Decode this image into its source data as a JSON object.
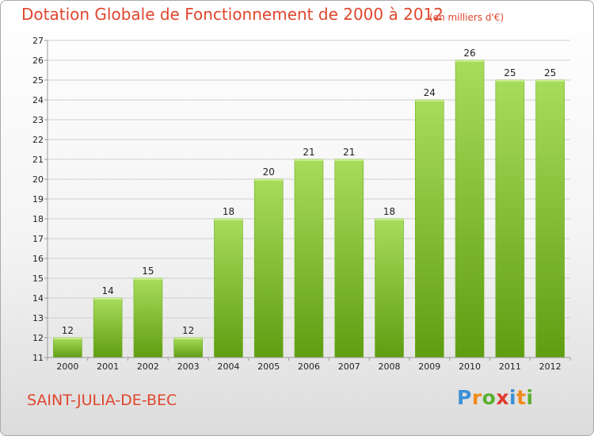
{
  "header": {
    "title": "Dotation Globale de Fonctionnement de 2000 à 2012",
    "unit": "(en milliers d'€)"
  },
  "footer": {
    "commune": "SAINT-JULIA-DE-BEC",
    "logo_letters": [
      "P",
      "r",
      "o",
      "x",
      "i",
      "t",
      "i"
    ],
    "logo_colors": [
      "#3b8fd6",
      "#f08a1c",
      "#5bb030",
      "#e03a2e",
      "#3b8fd6",
      "#f08a1c",
      "#5bb030"
    ]
  },
  "colors": {
    "bar_top": "#a8dc5c",
    "bar_bottom": "#5f9d12",
    "grid": "#cfcfcf",
    "axis": "#9a9a9a",
    "text": "#222222",
    "accent": "#e0462e"
  },
  "chart_data": {
    "type": "bar",
    "categories": [
      "2000",
      "2001",
      "2002",
      "2003",
      "2004",
      "2005",
      "2006",
      "2007",
      "2008",
      "2009",
      "2010",
      "2011",
      "2012"
    ],
    "values": [
      12,
      14,
      15,
      12,
      18,
      20,
      21,
      21,
      18,
      24,
      26,
      25,
      25
    ],
    "ylim": [
      11,
      27
    ],
    "yticks": [
      11,
      12,
      13,
      14,
      15,
      16,
      17,
      18,
      19,
      20,
      21,
      22,
      23,
      24,
      25,
      26,
      27
    ],
    "grid": true,
    "show_value_labels": true
  }
}
